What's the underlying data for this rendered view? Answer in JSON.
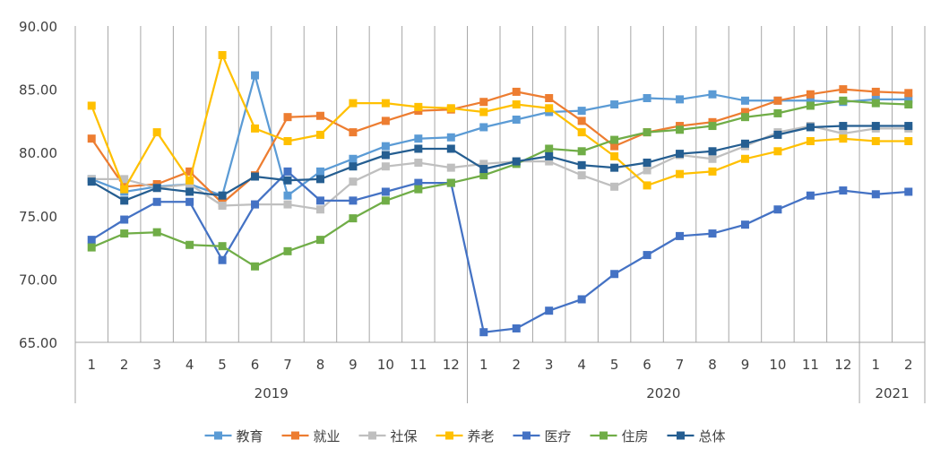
{
  "chart_data": {
    "type": "line",
    "title": "",
    "xlabel": "",
    "ylabel": "",
    "ylim": [
      65,
      90
    ],
    "y_ticks": [
      "65.00",
      "70.00",
      "75.00",
      "80.00",
      "85.00",
      "90.00"
    ],
    "grid": "vertical",
    "legend_position": "bottom",
    "categories": [
      "1",
      "2",
      "3",
      "4",
      "5",
      "6",
      "7",
      "8",
      "9",
      "10",
      "11",
      "12",
      "1",
      "2",
      "3",
      "4",
      "5",
      "6",
      "7",
      "8",
      "9",
      "10",
      "11",
      "12",
      "1",
      "2"
    ],
    "groups": [
      {
        "label": "2019",
        "count": 12
      },
      {
        "label": "2020",
        "count": 12
      },
      {
        "label": "2021",
        "count": 2
      }
    ],
    "series": [
      {
        "name": "教育",
        "color": "#5B9BD5",
        "values": [
          77.9,
          76.9,
          77.3,
          77.5,
          76.6,
          86.1,
          76.6,
          78.5,
          79.5,
          80.5,
          81.1,
          81.2,
          82.0,
          82.6,
          83.2,
          83.3,
          83.8,
          84.3,
          84.2,
          84.6,
          84.1,
          84.1,
          84.1,
          84.0,
          84.2,
          84.2
        ]
      },
      {
        "name": "就业",
        "color": "#ED7D31",
        "values": [
          81.1,
          77.3,
          77.5,
          78.5,
          76.0,
          78.2,
          82.8,
          82.9,
          81.6,
          82.5,
          83.3,
          83.4,
          84.0,
          84.8,
          84.3,
          82.5,
          80.5,
          81.6,
          82.1,
          82.4,
          83.2,
          84.1,
          84.6,
          85.0,
          84.8,
          84.7
        ]
      },
      {
        "name": "社保",
        "color": "#BFBFBF",
        "values": [
          77.9,
          77.9,
          77.2,
          77.5,
          75.8,
          75.9,
          75.9,
          75.5,
          77.7,
          78.9,
          79.2,
          78.8,
          79.1,
          79.3,
          79.3,
          78.2,
          77.3,
          78.6,
          79.8,
          79.5,
          80.5,
          81.6,
          82.1,
          81.5,
          81.9,
          81.9
        ]
      },
      {
        "name": "养老",
        "color": "#FFC000",
        "values": [
          83.7,
          77.1,
          81.6,
          77.8,
          87.7,
          81.9,
          80.9,
          81.4,
          83.9,
          83.9,
          83.6,
          83.5,
          83.2,
          83.8,
          83.5,
          81.6,
          79.7,
          77.4,
          78.3,
          78.5,
          79.5,
          80.1,
          80.9,
          81.1,
          80.9,
          80.9
        ]
      },
      {
        "name": "医疗",
        "color": "#4472C4",
        "values": [
          73.1,
          74.7,
          76.1,
          76.1,
          71.5,
          75.9,
          78.5,
          76.2,
          76.2,
          76.9,
          77.6,
          77.6,
          65.8,
          66.1,
          67.5,
          68.4,
          70.4,
          71.9,
          73.4,
          73.6,
          74.3,
          75.5,
          76.6,
          77.0,
          76.7,
          76.9
        ]
      },
      {
        "name": "住房",
        "color": "#70AD47",
        "values": [
          72.5,
          73.6,
          73.7,
          72.7,
          72.6,
          71.0,
          72.2,
          73.1,
          74.8,
          76.2,
          77.1,
          77.6,
          78.2,
          79.1,
          80.3,
          80.1,
          81.0,
          81.6,
          81.8,
          82.1,
          82.8,
          83.1,
          83.7,
          84.1,
          83.9,
          83.8
        ]
      },
      {
        "name": "总体",
        "color": "#255E91",
        "values": [
          77.7,
          76.2,
          77.2,
          76.9,
          76.6,
          78.1,
          77.8,
          77.9,
          78.9,
          79.8,
          80.3,
          80.3,
          78.7,
          79.3,
          79.7,
          79.0,
          78.8,
          79.2,
          79.9,
          80.1,
          80.7,
          81.4,
          82.0,
          82.1,
          82.1,
          82.1
        ]
      }
    ]
  }
}
